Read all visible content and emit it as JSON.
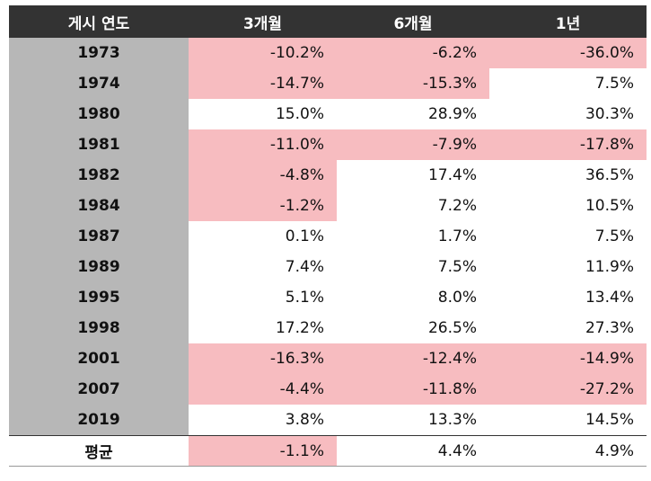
{
  "headers": [
    "게시 연도",
    "3개월",
    "6개월",
    "1년"
  ],
  "rows": [
    {
      "year": "1973",
      "m3": "-10.2%",
      "m6": "-6.2%",
      "y1": "-36.0%"
    },
    {
      "year": "1974",
      "m3": "-14.7%",
      "m6": "-15.3%",
      "y1": "7.5%"
    },
    {
      "year": "1980",
      "m3": "15.0%",
      "m6": "28.9%",
      "y1": "30.3%"
    },
    {
      "year": "1981",
      "m3": "-11.0%",
      "m6": "-7.9%",
      "y1": "-17.8%"
    },
    {
      "year": "1982",
      "m3": "-4.8%",
      "m6": "17.4%",
      "y1": "36.5%"
    },
    {
      "year": "1984",
      "m3": "-1.2%",
      "m6": "7.2%",
      "y1": "10.5%"
    },
    {
      "year": "1987",
      "m3": "0.1%",
      "m6": "1.7%",
      "y1": "7.5%"
    },
    {
      "year": "1989",
      "m3": "7.4%",
      "m6": "7.5%",
      "y1": "11.9%"
    },
    {
      "year": "1995",
      "m3": "5.1%",
      "m6": "8.0%",
      "y1": "13.4%"
    },
    {
      "year": "1998",
      "m3": "17.2%",
      "m6": "26.5%",
      "y1": "27.3%"
    },
    {
      "year": "2001",
      "m3": "-16.3%",
      "m6": "-12.4%",
      "y1": "-14.9%"
    },
    {
      "year": "2007",
      "m3": "-4.4%",
      "m6": "-11.8%",
      "y1": "-27.2%"
    },
    {
      "year": "2019",
      "m3": "3.8%",
      "m6": "13.3%",
      "y1": "14.5%"
    }
  ],
  "average": {
    "label": "평균",
    "m3": "-1.1%",
    "m6": "4.4%",
    "y1": "4.9%"
  },
  "colors": {
    "negative_highlight": "#f7bcc0",
    "year_column": "#b7b7b7",
    "header": "#333333"
  }
}
